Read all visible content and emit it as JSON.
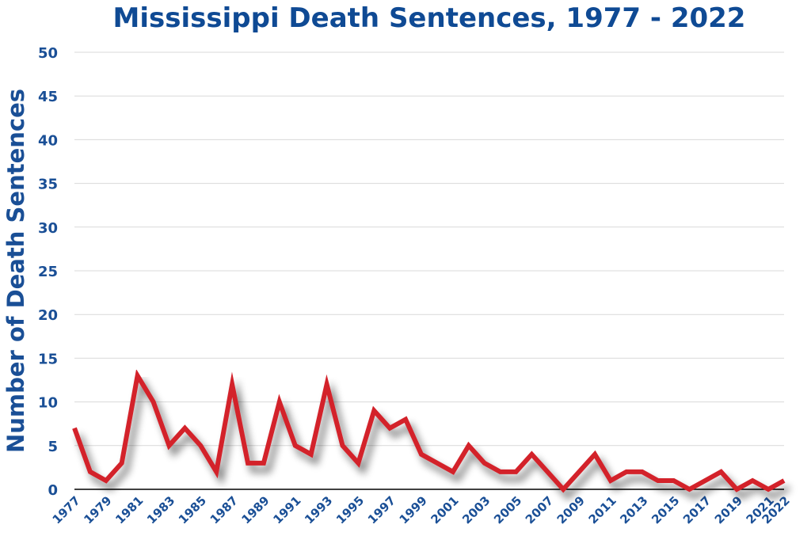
{
  "chart_data": {
    "type": "line",
    "title": "Mississippi Death Sentences, 1977 - 2022",
    "xlabel": "",
    "ylabel": "Number of Death Sentences",
    "ylim": [
      0,
      50
    ],
    "yticks": [
      0,
      5,
      10,
      15,
      20,
      25,
      30,
      35,
      40,
      45,
      50
    ],
    "xlim": [
      1977,
      2022
    ],
    "xtick_labels": [
      "1977",
      "1979",
      "1981",
      "1983",
      "1985",
      "1987",
      "1989",
      "1991",
      "1993",
      "1995",
      "1997",
      "1999",
      "2001",
      "2003",
      "2005",
      "2007",
      "2009",
      "2011",
      "2013",
      "2015",
      "2017",
      "2019",
      "2021",
      "2022"
    ],
    "grid": true,
    "legend": "none",
    "x": [
      1977,
      1978,
      1979,
      1980,
      1981,
      1982,
      1983,
      1984,
      1985,
      1986,
      1987,
      1988,
      1989,
      1990,
      1991,
      1992,
      1993,
      1994,
      1995,
      1996,
      1997,
      1998,
      1999,
      2000,
      2001,
      2002,
      2003,
      2004,
      2005,
      2006,
      2007,
      2008,
      2009,
      2010,
      2011,
      2012,
      2013,
      2014,
      2015,
      2016,
      2017,
      2018,
      2019,
      2020,
      2021,
      2022
    ],
    "series": [
      {
        "values": [
          7,
          2,
          1,
          3,
          13,
          10,
          5,
          7,
          5,
          2,
          12,
          3,
          3,
          10,
          5,
          4,
          12,
          5,
          3,
          9,
          7,
          8,
          4,
          3,
          2,
          5,
          3,
          2,
          2,
          4,
          2,
          0,
          2,
          4,
          1,
          2,
          2,
          1,
          1,
          0,
          1,
          2,
          0,
          1,
          0,
          1
        ],
        "color": "#d3202a"
      }
    ],
    "colors": {
      "title": "#0f4a94",
      "axis_text": "#1a4f96",
      "grid": "#d9d9d9",
      "baseline": "#000000",
      "line": "#d3202a"
    }
  }
}
